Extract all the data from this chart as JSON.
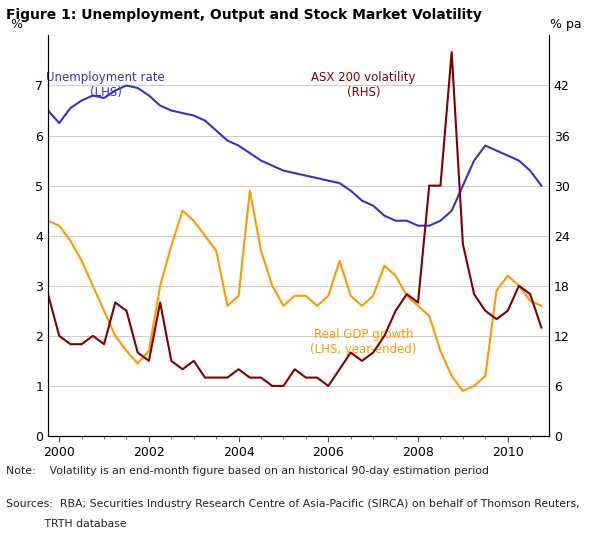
{
  "title": "Figure 1: Unemployment, Output and Stock Market Volatility",
  "ylabel_left": "%",
  "ylabel_right": "% pa",
  "note": "Note:    Volatility is an end-month figure based on an historical 90-day estimation period",
  "sources_line1": "Sources:  RBA; Securities Industry Research Centre of Asia-Pacific (SIRCA) on behalf of Thomson Reuters,",
  "sources_line2": "           TRTH database",
  "ylim_left": [
    0,
    8
  ],
  "ylim_right": [
    0,
    48
  ],
  "yticks_left": [
    0,
    1,
    2,
    3,
    4,
    5,
    6,
    7
  ],
  "yticks_right": [
    0,
    6,
    12,
    18,
    24,
    30,
    36,
    42
  ],
  "xlim": [
    1999.75,
    2010.92
  ],
  "xticks": [
    2000,
    2002,
    2004,
    2006,
    2008,
    2010
  ],
  "unemployment": {
    "label": "Unemployment rate\n(LHS)",
    "color": "#3333cc",
    "x": [
      1999.75,
      2000.0,
      2000.25,
      2000.5,
      2000.75,
      2001.0,
      2001.25,
      2001.5,
      2001.75,
      2002.0,
      2002.25,
      2002.5,
      2002.75,
      2003.0,
      2003.25,
      2003.5,
      2003.75,
      2004.0,
      2004.25,
      2004.5,
      2004.75,
      2005.0,
      2005.25,
      2005.5,
      2005.75,
      2006.0,
      2006.25,
      2006.5,
      2006.75,
      2007.0,
      2007.25,
      2007.5,
      2007.75,
      2008.0,
      2008.25,
      2008.5,
      2008.75,
      2009.0,
      2009.25,
      2009.5,
      2009.75,
      2010.0,
      2010.25,
      2010.5,
      2010.75
    ],
    "y": [
      6.5,
      6.25,
      6.55,
      6.7,
      6.8,
      6.75,
      6.9,
      7.0,
      6.95,
      6.8,
      6.6,
      6.5,
      6.45,
      6.4,
      6.3,
      6.1,
      5.9,
      5.8,
      5.65,
      5.5,
      5.4,
      5.3,
      5.25,
      5.2,
      5.15,
      5.1,
      5.05,
      4.9,
      4.7,
      4.6,
      4.4,
      4.3,
      4.3,
      4.2,
      4.2,
      4.3,
      4.5,
      5.0,
      5.5,
      5.8,
      5.7,
      5.6,
      5.5,
      5.3,
      5.0
    ]
  },
  "gdp": {
    "label": "Real GDP growth\n(LHS, year-ended)",
    "color": "#ff9900",
    "x": [
      1999.75,
      2000.0,
      2000.25,
      2000.5,
      2000.75,
      2001.0,
      2001.25,
      2001.5,
      2001.75,
      2002.0,
      2002.25,
      2002.5,
      2002.75,
      2003.0,
      2003.25,
      2003.5,
      2003.75,
      2004.0,
      2004.25,
      2004.5,
      2004.75,
      2005.0,
      2005.25,
      2005.5,
      2005.75,
      2006.0,
      2006.25,
      2006.5,
      2006.75,
      2007.0,
      2007.25,
      2007.5,
      2007.75,
      2008.0,
      2008.25,
      2008.5,
      2008.75,
      2009.0,
      2009.25,
      2009.5,
      2009.75,
      2010.0,
      2010.25,
      2010.5,
      2010.75
    ],
    "y": [
      4.3,
      4.2,
      3.9,
      3.5,
      3.0,
      2.5,
      2.0,
      1.7,
      1.45,
      1.7,
      3.0,
      3.8,
      4.5,
      4.3,
      4.0,
      3.7,
      2.6,
      2.8,
      4.9,
      3.7,
      3.0,
      2.6,
      2.8,
      2.8,
      2.6,
      2.8,
      3.5,
      2.8,
      2.6,
      2.8,
      3.4,
      3.2,
      2.8,
      2.6,
      2.4,
      1.7,
      1.2,
      0.9,
      1.0,
      1.2,
      2.9,
      3.2,
      3.0,
      2.7,
      2.6
    ]
  },
  "volatility": {
    "label": "ASX 200 volatility\n(RHS)",
    "color": "#800000",
    "x": [
      1999.75,
      2000.0,
      2000.25,
      2000.5,
      2000.75,
      2001.0,
      2001.25,
      2001.5,
      2001.75,
      2002.0,
      2002.25,
      2002.5,
      2002.75,
      2003.0,
      2003.25,
      2003.5,
      2003.75,
      2004.0,
      2004.25,
      2004.5,
      2004.75,
      2005.0,
      2005.25,
      2005.5,
      2005.75,
      2006.0,
      2006.25,
      2006.5,
      2006.75,
      2007.0,
      2007.25,
      2007.5,
      2007.75,
      2008.0,
      2008.25,
      2008.5,
      2008.75,
      2009.0,
      2009.25,
      2009.5,
      2009.75,
      2010.0,
      2010.25,
      2010.5,
      2010.75
    ],
    "y": [
      17,
      12,
      11,
      11,
      12,
      11,
      16,
      15,
      10,
      9,
      16,
      9,
      8,
      9,
      7,
      7,
      7,
      8,
      7,
      7,
      6,
      6,
      8,
      7,
      7,
      6,
      8,
      10,
      9,
      10,
      12,
      15,
      17,
      16,
      30,
      30,
      46,
      23,
      17,
      15,
      14,
      15,
      18,
      17,
      13
    ]
  },
  "background_color": "#ffffff",
  "grid_color": "#cccccc"
}
